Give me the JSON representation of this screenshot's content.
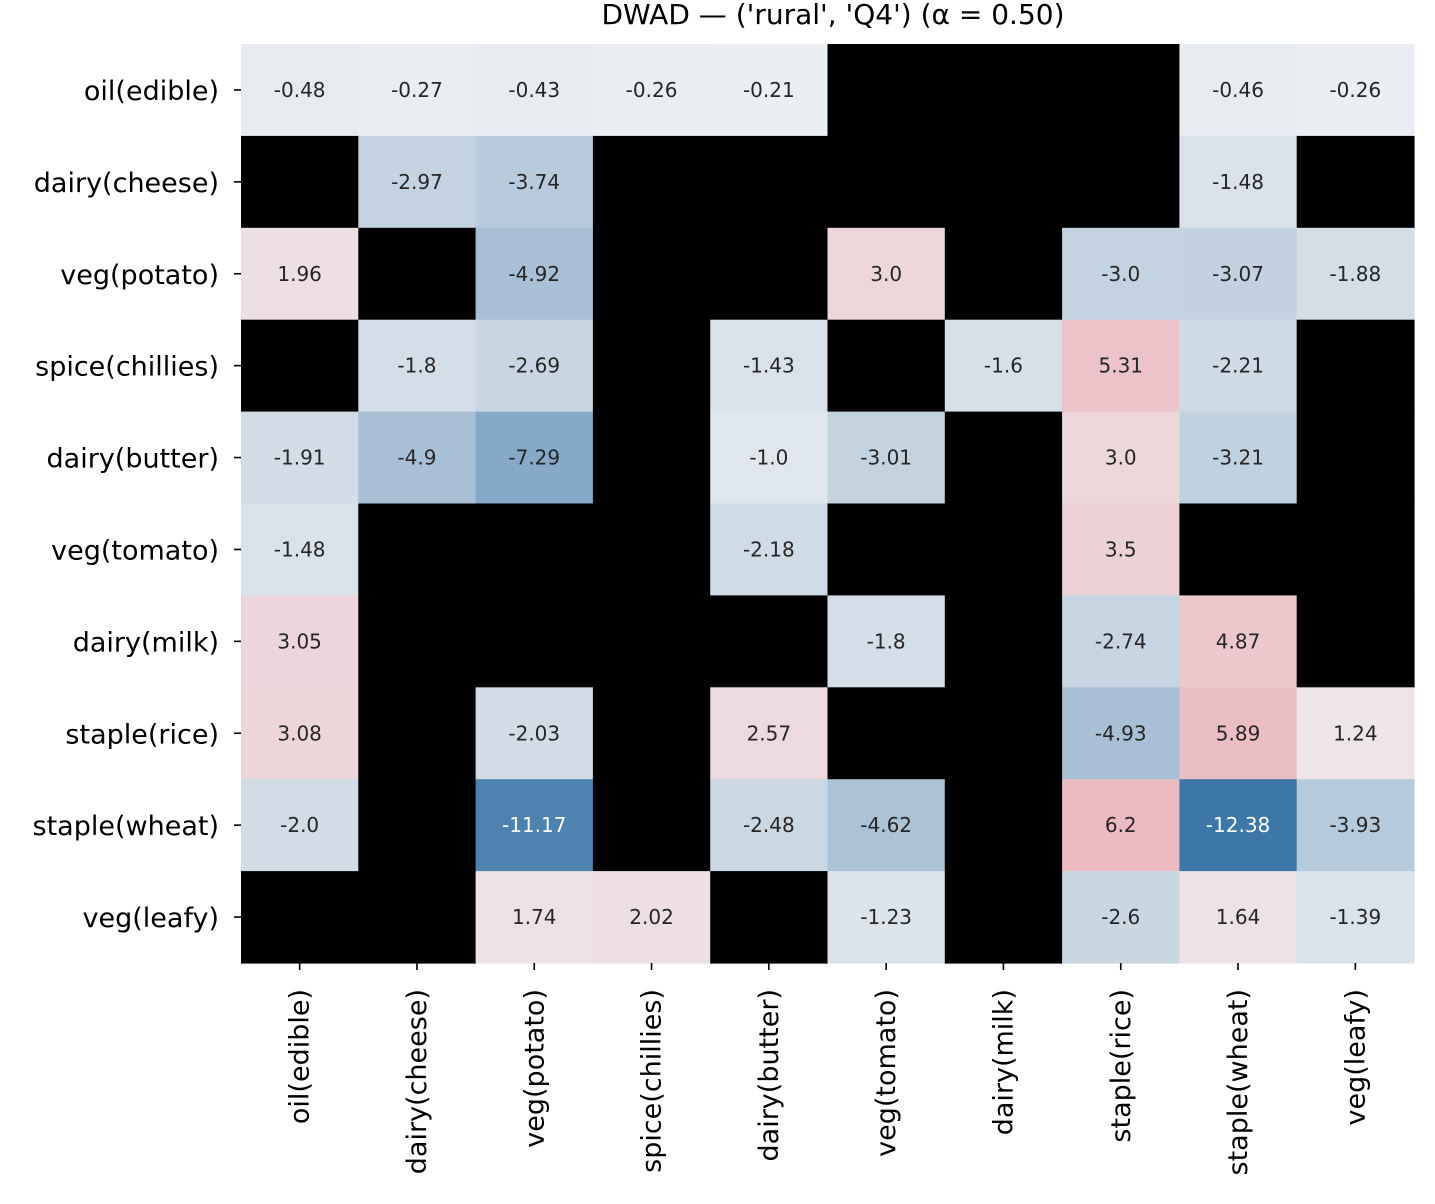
{
  "chart_data": {
    "type": "heatmap",
    "title": "DWAD — ('rural', 'Q4')   (α = 0.50)",
    "xlabel": "",
    "ylabel": "",
    "x_categories": [
      "oil(edible)",
      "dairy(cheese)",
      "veg(potato)",
      "spice(chillies)",
      "dairy(butter)",
      "veg(tomato)",
      "dairy(milk)",
      "staple(rice)",
      "staple(wheat)",
      "veg(leafy)"
    ],
    "y_categories": [
      "oil(edible)",
      "dairy(cheese)",
      "veg(potato)",
      "spice(chillies)",
      "dairy(butter)",
      "veg(tomato)",
      "dairy(milk)",
      "staple(rice)",
      "staple(wheat)",
      "veg(leafy)"
    ],
    "values": [
      [
        -0.48,
        -0.27,
        -0.43,
        -0.26,
        -0.21,
        null,
        null,
        null,
        -0.46,
        -0.26
      ],
      [
        null,
        -2.97,
        -3.74,
        null,
        null,
        null,
        null,
        null,
        -1.48,
        null
      ],
      [
        1.96,
        null,
        -4.92,
        null,
        null,
        3.0,
        null,
        -3.0,
        -3.07,
        -1.88
      ],
      [
        null,
        -1.8,
        -2.69,
        null,
        -1.43,
        null,
        -1.6,
        5.31,
        -2.21,
        null
      ],
      [
        -1.91,
        -4.9,
        -7.29,
        null,
        -1.0,
        -3.01,
        null,
        3.0,
        -3.21,
        null
      ],
      [
        -1.48,
        null,
        null,
        null,
        -2.18,
        null,
        null,
        3.5,
        null,
        null
      ],
      [
        3.05,
        null,
        null,
        null,
        null,
        -1.8,
        null,
        -2.74,
        4.87,
        null
      ],
      [
        3.08,
        null,
        -2.03,
        null,
        2.57,
        null,
        null,
        -4.93,
        5.89,
        1.24
      ],
      [
        -2.0,
        null,
        -11.17,
        null,
        -2.48,
        -4.62,
        null,
        6.2,
        -12.38,
        -3.93
      ],
      [
        null,
        null,
        1.74,
        2.02,
        null,
        -1.23,
        null,
        -2.6,
        1.64,
        -1.39
      ]
    ],
    "labels": [
      [
        "-0.48",
        "-0.27",
        "-0.43",
        "-0.26",
        "-0.21",
        "",
        "",
        "",
        "-0.46",
        "-0.26"
      ],
      [
        "",
        "-2.97",
        "-3.74",
        "",
        "",
        "",
        "",
        "",
        "-1.48",
        ""
      ],
      [
        "1.96",
        "",
        "-4.92",
        "",
        "",
        "3.0",
        "",
        "-3.0",
        "-3.07",
        "-1.88"
      ],
      [
        "",
        "-1.8",
        "-2.69",
        "",
        "-1.43",
        "",
        "-1.6",
        "5.31",
        "-2.21",
        ""
      ],
      [
        "-1.91",
        "-4.9",
        "-7.29",
        "",
        "-1.0",
        "-3.01",
        "",
        "3.0",
        "-3.21",
        ""
      ],
      [
        "-1.48",
        "",
        "",
        "",
        "-2.18",
        "",
        "",
        "3.5",
        "",
        ""
      ],
      [
        "3.05",
        "",
        "",
        "",
        "",
        "-1.8",
        "",
        "-2.74",
        "4.87",
        ""
      ],
      [
        "3.08",
        "",
        "-2.03",
        "",
        "2.57",
        "",
        "",
        "-4.93",
        "5.89",
        "1.24"
      ],
      [
        "-2.0",
        "",
        "-11.17",
        "",
        "-2.48",
        "-4.62",
        "",
        "6.2",
        "-12.38",
        "-3.93"
      ],
      [
        "",
        "",
        "1.74",
        "2.02",
        "",
        "-1.23",
        "",
        "-2.6",
        "1.64",
        "-1.39"
      ]
    ],
    "value_range": [
      -12.5,
      12.5
    ],
    "colors": {
      "negative": "#3a76a6",
      "neutral": "#eef0f3",
      "positive": "#e8868f",
      "missing": "#000000",
      "text_dark": "#262626",
      "text_light": "#ffffff",
      "axis": "#000000"
    },
    "grid": false,
    "legend": "none"
  }
}
